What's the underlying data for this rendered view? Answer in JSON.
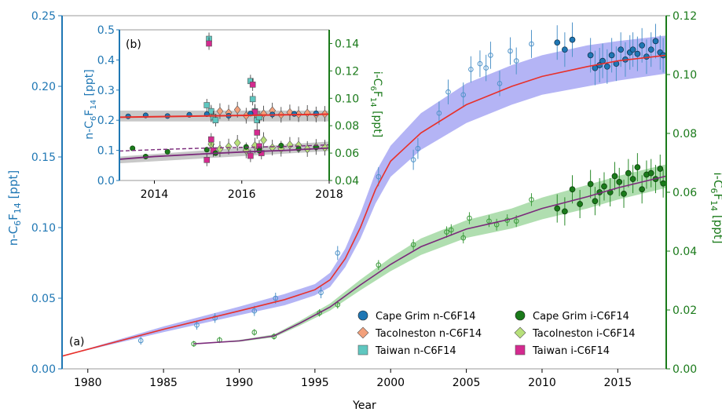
{
  "chart_data": [
    {
      "panel": "(a)",
      "type": "scatter",
      "xlabel": "Year",
      "ylabel_left": "n-C6F14 [ppt]",
      "ylabel_right": "i-C6F14 [ppt]",
      "xlim": [
        1978.3,
        2018.2
      ],
      "ylim_left": [
        0,
        0.25
      ],
      "ylim_right": [
        0,
        0.12
      ],
      "xticks": [
        "1980",
        "1985",
        "1990",
        "1995",
        "2000",
        "2005",
        "2010",
        "2015"
      ],
      "yticks_left": [
        "0.00",
        "0.05",
        "0.10",
        "0.15",
        "0.20",
        "0.25"
      ],
      "yticks_right": [
        "0.00",
        "0.02",
        "0.04",
        "0.06",
        "0.08",
        "0.10",
        "0.12"
      ],
      "colors": {
        "n_axis": "#1f77b4",
        "i_axis": "#1a7a1a",
        "n_model": "#e8302a",
        "i_model": "#7b2a7b",
        "n_band": "#8c8cf0",
        "i_band": "#8fd08f"
      },
      "model_n": {
        "x": [
          1978.3,
          1985,
          1990,
          1993,
          1995,
          1996,
          1997,
          1998,
          1999,
          2000,
          2002,
          2005,
          2008,
          2010,
          2013,
          2015,
          2018.2
        ],
        "y": [
          0.009,
          0.028,
          0.041,
          0.049,
          0.056,
          0.063,
          0.078,
          0.1,
          0.127,
          0.147,
          0.167,
          0.187,
          0.2,
          0.207,
          0.214,
          0.218,
          0.222
        ]
      },
      "band_n": {
        "upper": [
          0.009,
          0.03,
          0.044,
          0.053,
          0.06,
          0.068,
          0.085,
          0.11,
          0.139,
          0.158,
          0.181,
          0.202,
          0.215,
          0.222,
          0.229,
          0.232,
          0.236
        ],
        "lower": [
          0.009,
          0.026,
          0.038,
          0.045,
          0.052,
          0.058,
          0.072,
          0.092,
          0.117,
          0.136,
          0.155,
          0.174,
          0.187,
          0.194,
          0.2,
          0.204,
          0.209
        ]
      },
      "model_i": {
        "x": [
          1987,
          1990,
          1992.3,
          1994,
          1996,
          1998,
          2000,
          2002,
          2005,
          2008,
          2010,
          2013,
          2015,
          2018.2
        ],
        "y": [
          0.0085,
          0.0095,
          0.0112,
          0.0155,
          0.021,
          0.0285,
          0.0355,
          0.0415,
          0.0475,
          0.051,
          0.0545,
          0.0585,
          0.0615,
          0.0655
        ]
      },
      "band_i": {
        "upper": [
          0.0085,
          0.0098,
          0.0117,
          0.0163,
          0.0222,
          0.0303,
          0.0378,
          0.0443,
          0.0505,
          0.0545,
          0.0582,
          0.0625,
          0.0655,
          0.0695
        ],
        "lower": [
          0.0085,
          0.0092,
          0.0107,
          0.0147,
          0.0198,
          0.0267,
          0.0332,
          0.0387,
          0.0445,
          0.0477,
          0.0508,
          0.0545,
          0.0575,
          0.0615
        ]
      },
      "archive_n": {
        "x": [
          1983.5,
          1987.2,
          1988.4,
          1991,
          1992.4,
          1995.4,
          1996.5,
          1999.2,
          2001.5,
          2001.8,
          2003.2,
          2003.8,
          2004.8,
          2005.3,
          2005.9,
          2006.3,
          2006.6,
          2007.2,
          2007.9,
          2008.3,
          2009.3
        ],
        "y": [
          0.02,
          0.031,
          0.036,
          0.041,
          0.05,
          0.054,
          0.082,
          0.136,
          0.148,
          0.156,
          0.181,
          0.196,
          0.194,
          0.212,
          0.216,
          0.213,
          0.222,
          0.202,
          0.225,
          0.218,
          0.23
        ]
      },
      "archive_i": {
        "x": [
          1987,
          1988.7,
          1991,
          1992.3,
          1995.3,
          1996.5,
          1999.2,
          2001.5,
          2003.7,
          2004,
          2004.8,
          2005.2,
          2006.5,
          2007,
          2007.7,
          2008.3,
          2009.3
        ],
        "y": [
          0.0085,
          0.0098,
          0.0124,
          0.011,
          0.019,
          0.0218,
          0.0353,
          0.0422,
          0.0465,
          0.0472,
          0.0445,
          0.0512,
          0.0502,
          0.049,
          0.0505,
          0.0502,
          0.0575
        ]
      },
      "cape_grim_n": {
        "x": [
          2011,
          2011.5,
          2012,
          2013.2,
          2013.5,
          2013.8,
          2014,
          2014.3,
          2014.6,
          2014.9,
          2015.2,
          2015.5,
          2015.8,
          2016,
          2016.3,
          2016.6,
          2016.9,
          2017.2,
          2017.5,
          2017.8,
          2018
        ],
        "y": [
          0.231,
          0.226,
          0.233,
          0.222,
          0.213,
          0.215,
          0.218,
          0.214,
          0.222,
          0.216,
          0.226,
          0.219,
          0.224,
          0.226,
          0.223,
          0.229,
          0.221,
          0.226,
          0.232,
          0.224,
          0.222
        ]
      },
      "cape_grim_i": {
        "x": [
          2011,
          2011.5,
          2012,
          2012.5,
          2013.2,
          2013.5,
          2013.8,
          2014.1,
          2014.5,
          2014.8,
          2015.1,
          2015.4,
          2015.7,
          2016,
          2016.3,
          2016.6,
          2016.9,
          2017.2,
          2017.5,
          2017.8,
          2018
        ],
        "y": [
          0.0545,
          0.0535,
          0.061,
          0.056,
          0.0628,
          0.057,
          0.06,
          0.062,
          0.06,
          0.0655,
          0.0635,
          0.0595,
          0.0665,
          0.0645,
          0.0685,
          0.061,
          0.066,
          0.0665,
          0.0645,
          0.068,
          0.063
        ]
      },
      "legend": [
        {
          "label": "Cape Grim n-C6F14",
          "marker": "circle",
          "color": "#1f77b4"
        },
        {
          "label": "Tacolneston n-C6F14",
          "marker": "diamond",
          "color": "#f2a07b"
        },
        {
          "label": "Taiwan n-C6F14",
          "marker": "square",
          "color": "#5fc7c0"
        },
        {
          "label": "Cape Grim i-C6F14",
          "marker": "circle",
          "color": "#1a7a1a"
        },
        {
          "label": "Tacolneston i-C6F14",
          "marker": "diamond",
          "color": "#b7e07a"
        },
        {
          "label": "Taiwan i-C6F14",
          "marker": "square",
          "color": "#d42a8f"
        }
      ]
    },
    {
      "panel": "(b)",
      "type": "scatter",
      "ylabel_left": "n-C6F14 [ppt]",
      "ylabel_right": "i-C6F14 [ppt]",
      "xlim": [
        2013.2,
        2018
      ],
      "ylim_left": [
        0,
        0.5
      ],
      "ylim_right": [
        0.04,
        0.15
      ],
      "xticks": [
        "2014",
        "2016",
        "2018"
      ],
      "yticks_left": [
        "0.0",
        "0.1",
        "0.2",
        "0.3",
        "0.4",
        "0.5"
      ],
      "yticks_right": [
        "0.04",
        "0.06",
        "0.08",
        "0.10",
        "0.12",
        "0.14"
      ],
      "model_n": {
        "x": [
          2013.2,
          2018
        ],
        "y": [
          0.21,
          0.22
        ]
      },
      "model_i": {
        "x": [
          2013.2,
          2014,
          2015,
          2016,
          2017,
          2018
        ],
        "y": [
          0.0555,
          0.0575,
          0.0592,
          0.0608,
          0.062,
          0.0637
        ]
      },
      "model_i_dashed": {
        "x": [
          2013.2,
          2014,
          2015,
          2016,
          2017,
          2018
        ],
        "y": [
          0.0615,
          0.0625,
          0.0635,
          0.0642,
          0.0648,
          0.066
        ]
      },
      "cape_grim_n": {
        "x": [
          2013.4,
          2013.8,
          2014.3,
          2014.8,
          2015.2,
          2015.7,
          2016.2,
          2016.7,
          2017.2,
          2017.7
        ],
        "y": [
          0.213,
          0.216,
          0.214,
          0.218,
          0.22,
          0.215,
          0.222,
          0.219,
          0.221,
          0.223
        ]
      },
      "cape_grim_i": {
        "x": [
          2013.5,
          2013.8,
          2014.3,
          2015.2,
          2015.4,
          2016.1,
          2016.4,
          2016.9,
          2017.3,
          2017.7
        ],
        "y": [
          0.0635,
          0.0575,
          0.061,
          0.0625,
          0.06,
          0.0645,
          0.0618,
          0.0655,
          0.0632,
          0.0642
        ]
      },
      "tacolneston_n": {
        "x": [
          2015.3,
          2015.5,
          2015.7,
          2015.9,
          2016.1,
          2016.3,
          2016.5,
          2016.7,
          2016.9,
          2017.1,
          2017.3,
          2017.5,
          2017.7,
          2017.9
        ],
        "y": [
          0.22,
          0.23,
          0.225,
          0.235,
          0.215,
          0.228,
          0.222,
          0.232,
          0.218,
          0.226,
          0.22,
          0.224,
          0.219,
          0.221
        ]
      },
      "tacolneston_i": {
        "x": [
          2015.3,
          2015.5,
          2015.7,
          2015.9,
          2016.1,
          2016.3,
          2016.5,
          2016.7,
          2016.9,
          2017.1,
          2017.3,
          2017.5,
          2017.7,
          2017.9
        ],
        "y": [
          0.0665,
          0.063,
          0.0648,
          0.0675,
          0.062,
          0.0655,
          0.0695,
          0.064,
          0.0632,
          0.066,
          0.0658,
          0.063,
          0.0645,
          0.064
        ]
      },
      "taiwan_n": {
        "x": [
          2015.2,
          2015.25,
          2015.3,
          2015.35,
          2015.4,
          2016.2,
          2016.25,
          2016.3,
          2016.35,
          2016.4
        ],
        "y": [
          0.25,
          0.47,
          0.23,
          0.21,
          0.2,
          0.33,
          0.27,
          0.23,
          0.2,
          0.21
        ]
      },
      "taiwan_i": {
        "x": [
          2015.2,
          2015.25,
          2015.3,
          2015.35,
          2016.2,
          2016.25,
          2016.3,
          2016.35,
          2016.4,
          2016.45
        ],
        "y": [
          0.055,
          0.14,
          0.07,
          0.062,
          0.058,
          0.11,
          0.09,
          0.075,
          0.065,
          0.06
        ]
      }
    }
  ]
}
